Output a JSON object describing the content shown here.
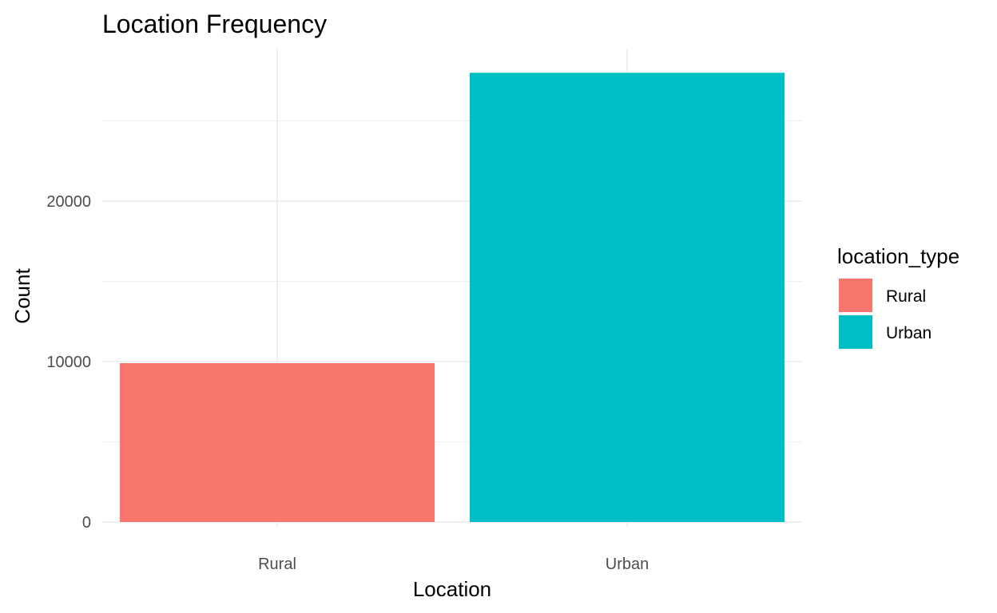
{
  "chart_data": {
    "type": "bar",
    "title": "Location Frequency",
    "xlabel": "Location",
    "ylabel": "Count",
    "categories": [
      "Rural",
      "Urban"
    ],
    "values": [
      9900,
      28000
    ],
    "colors": [
      "#F8766D",
      "#00BFC4"
    ],
    "ylim": [
      0,
      28000
    ],
    "yticks": [
      0,
      10000,
      20000
    ],
    "ytick_labels": [
      "0",
      "10000",
      "20000"
    ],
    "grid": true,
    "legend": {
      "title": "location_type",
      "position": "right",
      "items": [
        {
          "label": "Rural",
          "color": "#F8766D"
        },
        {
          "label": "Urban",
          "color": "#00BFC4"
        }
      ]
    }
  }
}
